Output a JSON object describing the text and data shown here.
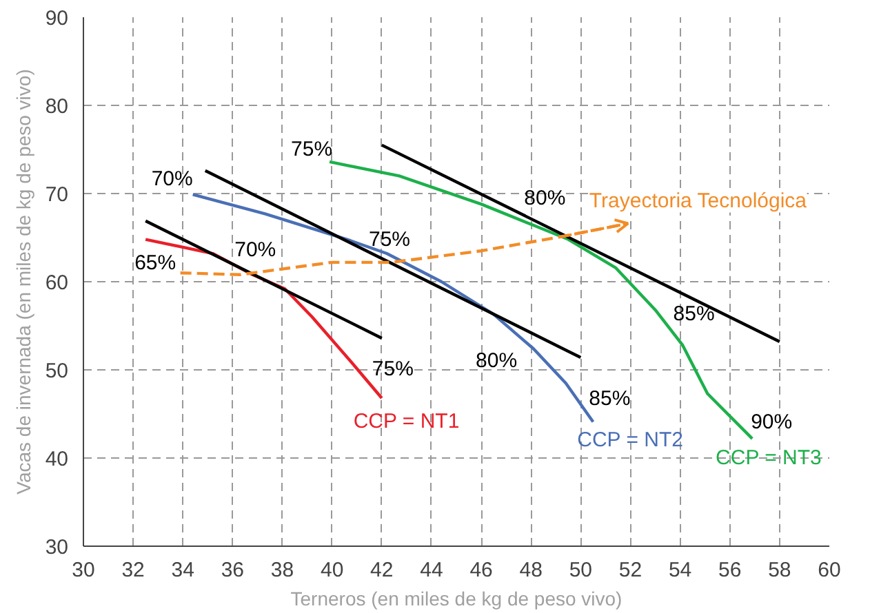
{
  "chart_data": {
    "type": "line",
    "xlabel": "Terneros (en miles de kg de peso vivo)",
    "ylabel": "Vacas de invernada (en miles de kg de peso vivo)",
    "xlim": [
      30,
      60
    ],
    "ylim": [
      30,
      90
    ],
    "xticks": [
      30,
      32,
      34,
      36,
      38,
      40,
      42,
      44,
      46,
      48,
      50,
      52,
      54,
      56,
      58,
      60
    ],
    "yticks": [
      30,
      40,
      50,
      60,
      70,
      80,
      90
    ],
    "grid": true,
    "series": [
      {
        "name": "CCP = NT1",
        "color": "#e8202a",
        "x": [
          32.5,
          35.2,
          36.8,
          38.1,
          39.2,
          40.8,
          42.0
        ],
        "values": [
          64.8,
          63.2,
          60.8,
          59.2,
          56.0,
          50.8,
          46.8
        ],
        "line_style": "solid"
      },
      {
        "color": "#000000",
        "x": [
          32.5,
          42.0
        ],
        "values": [
          66.9,
          53.6
        ],
        "line_style": "solid"
      },
      {
        "name": "CCP = NT2",
        "color": "#4a6fb5",
        "x": [
          34.4,
          37.3,
          40.6,
          42.2,
          44.4,
          46.5,
          48.1,
          49.4,
          50.5
        ],
        "values": [
          69.9,
          67.7,
          64.8,
          63.2,
          60.0,
          56.3,
          52.4,
          48.5,
          44.1
        ],
        "line_style": "solid"
      },
      {
        "color": "#000000",
        "x": [
          34.9,
          50.0
        ],
        "values": [
          72.6,
          51.4
        ],
        "line_style": "solid"
      },
      {
        "name": "CCP = NT3",
        "color": "#1db04b",
        "x": [
          39.9,
          42.7,
          46.0,
          48.1,
          49.5,
          51.4,
          53.0,
          54.1,
          55.1,
          56.9
        ],
        "values": [
          73.6,
          72.0,
          68.8,
          66.4,
          64.8,
          61.6,
          56.8,
          52.8,
          47.3,
          42.2
        ],
        "line_style": "solid"
      },
      {
        "color": "#000000",
        "x": [
          42.0,
          58.0
        ],
        "values": [
          75.5,
          53.2
        ],
        "line_style": "solid"
      },
      {
        "name": "Trayectoria Tecnológica",
        "color": "#f28c28",
        "x": [
          33.9,
          36.3,
          40.0,
          42.4,
          46.0,
          49.2,
          51.9
        ],
        "values": [
          61.0,
          60.8,
          62.2,
          62.2,
          63.5,
          65.1,
          66.6
        ],
        "line_style": "dashed"
      }
    ],
    "annotations": [
      {
        "text": "65%",
        "x": 32.5,
        "y": 64.8
      },
      {
        "text": "70%",
        "x": 34.4,
        "y": 69.9
      },
      {
        "text": "70%",
        "x": 36.8,
        "y": 60.8
      },
      {
        "text": "75%",
        "x": 39.9,
        "y": 73.6
      },
      {
        "text": "75%",
        "x": 42.2,
        "y": 63.2
      },
      {
        "text": "75%",
        "x": 42.0,
        "y": 46.8
      },
      {
        "text": "80%",
        "x": 46.5,
        "y": 56.3
      },
      {
        "text": "80%",
        "x": 49.5,
        "y": 64.8
      },
      {
        "text": "85%",
        "x": 50.5,
        "y": 44.1
      },
      {
        "text": "85%",
        "x": 53.0,
        "y": 56.8
      },
      {
        "text": "90%",
        "x": 56.9,
        "y": 42.2
      }
    ]
  }
}
